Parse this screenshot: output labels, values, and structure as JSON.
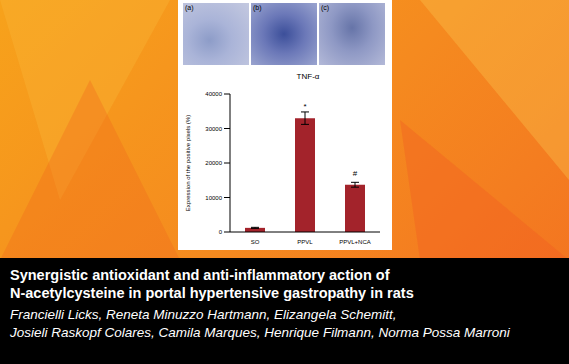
{
  "chart_data": {
    "type": "bar",
    "title": "TNF-α",
    "categories": [
      "SO",
      "PPVL",
      "PPVL+NCA"
    ],
    "values": [
      1200,
      33000,
      13700
    ],
    "errors": [
      150,
      1800,
      700
    ],
    "significance": [
      null,
      "*",
      "#"
    ],
    "color": "#a3232b",
    "ylabel": "Expression of the positive pixels (%)",
    "ylim": [
      0,
      40000
    ],
    "yticks": [
      0,
      10000,
      20000,
      30000,
      40000
    ],
    "grid": false
  },
  "panel_labels": [
    "(a)",
    "(b)",
    "(c)"
  ],
  "title_lines": [
    "Synergistic antioxidant and anti-inflammatory action of",
    "N-acetylcysteine in portal hypertensive gastropathy in rats"
  ],
  "authors_lines": [
    "Francielli Licks, Reneta Minuzzo Hartmann, Elizangela Schemitt,",
    "Josieli Raskopf Colares, Camila Marques, Henrique Filmann, Norma Possa Marroni"
  ]
}
